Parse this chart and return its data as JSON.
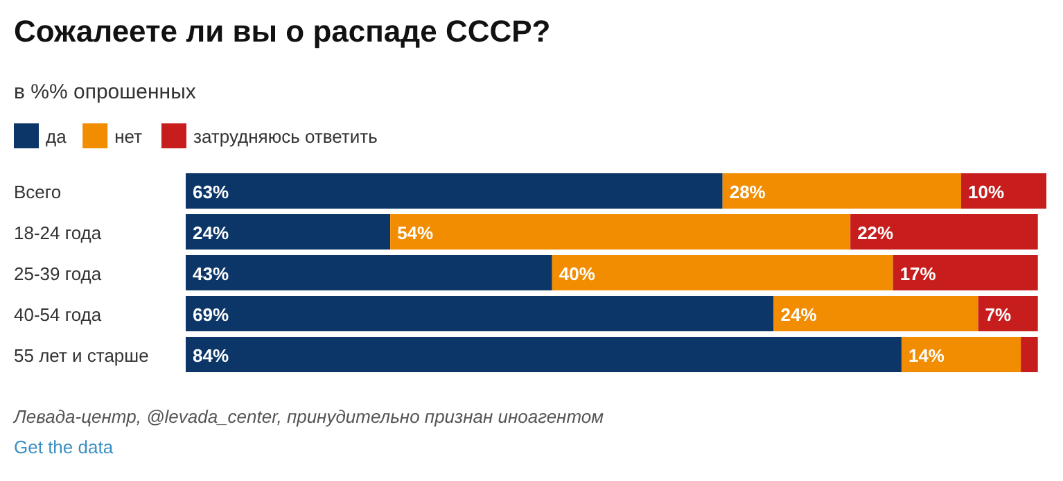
{
  "chart_data": {
    "type": "bar",
    "orientation": "horizontal",
    "stacked": true,
    "title": "Сожалеете ли вы о распаде СССР?",
    "subtitle": "в %% опрошенных",
    "legend": "top left",
    "categories": [
      "Всего",
      "18-24 года",
      "25-39 года",
      "40-54 года",
      "55 лет и старше"
    ],
    "series": [
      {
        "name": "да",
        "color": "#0b3667",
        "values": [
          63,
          24,
          43,
          69,
          84
        ],
        "value_labels": [
          "63%",
          "24%",
          "43%",
          "69%",
          "84%"
        ]
      },
      {
        "name": "нет",
        "color": "#f28c00",
        "values": [
          28,
          54,
          40,
          24,
          14
        ],
        "value_labels": [
          "28%",
          "54%",
          "40%",
          "24%",
          "14%"
        ]
      },
      {
        "name": "затрудняюсь ответить",
        "color": "#c71e1d",
        "values": [
          10,
          22,
          17,
          7,
          2
        ],
        "value_labels": [
          "10%",
          "22%",
          "17%",
          "7%",
          null
        ]
      }
    ],
    "annotations": [
      "Левада-центр, @levada_center, принудительно признан иноагентом",
      "Get the data"
    ]
  }
}
